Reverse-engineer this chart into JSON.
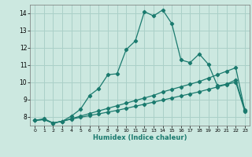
{
  "title": "",
  "xlabel": "Humidex (Indice chaleur)",
  "xlim": [
    -0.5,
    23.5
  ],
  "ylim": [
    7.5,
    14.5
  ],
  "xticks": [
    0,
    1,
    2,
    3,
    4,
    5,
    6,
    7,
    8,
    9,
    10,
    11,
    12,
    13,
    14,
    15,
    16,
    17,
    18,
    19,
    20,
    21,
    22,
    23
  ],
  "yticks": [
    8,
    9,
    10,
    11,
    12,
    13,
    14
  ],
  "background_color": "#cce8e0",
  "grid_color": "#aad0c8",
  "line_color": "#1a7a6e",
  "line1_x": [
    0,
    1,
    2,
    3,
    4,
    5,
    6,
    7,
    8,
    9,
    10,
    11,
    12,
    13,
    14,
    15,
    16,
    17,
    18,
    19,
    20,
    21,
    22,
    23
  ],
  "line1_y": [
    7.8,
    7.9,
    7.65,
    7.75,
    8.05,
    8.45,
    9.25,
    9.65,
    10.45,
    10.5,
    11.9,
    12.4,
    14.1,
    13.85,
    14.2,
    13.4,
    11.3,
    11.15,
    11.65,
    11.05,
    9.8,
    9.9,
    10.15,
    8.4
  ],
  "line2_x": [
    0,
    1,
    2,
    3,
    4,
    5,
    6,
    7,
    8,
    9,
    10,
    11,
    12,
    13,
    14,
    15,
    16,
    17,
    18,
    19,
    20,
    21,
    22,
    23
  ],
  "line2_y": [
    7.8,
    7.85,
    7.65,
    7.75,
    7.9,
    8.05,
    8.2,
    8.35,
    8.5,
    8.65,
    8.8,
    8.95,
    9.1,
    9.25,
    9.45,
    9.6,
    9.75,
    9.9,
    10.05,
    10.25,
    10.45,
    10.65,
    10.85,
    8.35
  ],
  "line3_x": [
    0,
    1,
    2,
    3,
    4,
    5,
    6,
    7,
    8,
    9,
    10,
    11,
    12,
    13,
    14,
    15,
    16,
    17,
    18,
    19,
    20,
    21,
    22,
    23
  ],
  "line3_y": [
    7.8,
    7.85,
    7.65,
    7.75,
    7.88,
    7.98,
    8.08,
    8.18,
    8.28,
    8.38,
    8.5,
    8.62,
    8.74,
    8.86,
    8.98,
    9.1,
    9.22,
    9.34,
    9.46,
    9.6,
    9.74,
    9.88,
    10.02,
    8.3
  ]
}
